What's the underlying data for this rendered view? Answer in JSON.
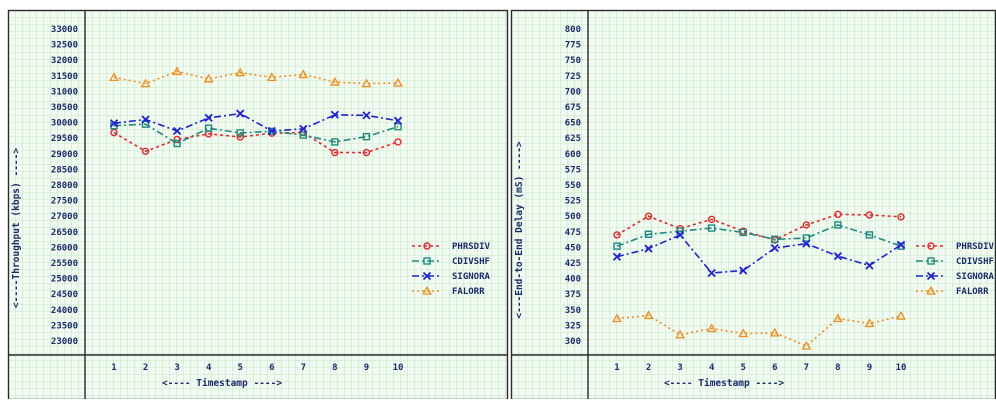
{
  "colors": {
    "background": "#f2fbf2",
    "grid": "#c4e8c4",
    "axis": "#2b2b2b",
    "label_text": "#1a2b6d"
  },
  "series_styles": [
    {
      "color": "#e8262a",
      "marker": "circle",
      "dash": "3,3"
    },
    {
      "color": "#1c8a7e",
      "marker": "square",
      "dash": "7,3,2,3"
    },
    {
      "color": "#1e22d9",
      "marker": "x",
      "dash": "7,3,2,3"
    },
    {
      "color": "#f28c1a",
      "marker": "triangle",
      "dash": "2,3"
    }
  ],
  "chart_data": [
    {
      "type": "line",
      "xlabel": "<---- Timestamp ---->",
      "ylabel": "<----Throughput (kbps) ---->",
      "x": [
        1,
        2,
        3,
        4,
        5,
        6,
        7,
        8,
        9,
        10
      ],
      "ylim": [
        23000,
        33000
      ],
      "yticks": [
        23000,
        23500,
        24000,
        24500,
        25000,
        25500,
        26000,
        26500,
        27000,
        27500,
        28000,
        28500,
        29000,
        29500,
        30000,
        30500,
        31000,
        31500,
        32000,
        32500,
        33000
      ],
      "grid": true,
      "legend": "right",
      "series": [
        {
          "name": "PHRSDIV",
          "values": [
            29680,
            29080,
            29460,
            29640,
            29540,
            29660,
            29680,
            29040,
            29040,
            29380
          ]
        },
        {
          "name": "CDIVSHF",
          "values": [
            29900,
            29950,
            29330,
            29820,
            29670,
            29720,
            29600,
            29380,
            29550,
            29870
          ]
        },
        {
          "name": "SIGNORA",
          "values": [
            29980,
            30100,
            29730,
            30150,
            30290,
            29730,
            29800,
            30250,
            30230,
            30060
          ]
        },
        {
          "name": "FALORR",
          "values": [
            31450,
            31250,
            31640,
            31400,
            31600,
            31450,
            31540,
            31300,
            31250,
            31270
          ]
        }
      ]
    },
    {
      "type": "line",
      "xlabel": "<---- Timestamp ---->",
      "ylabel": "<---End-to-End Delay (mS) ---->",
      "x": [
        1,
        2,
        3,
        4,
        5,
        6,
        7,
        8,
        9,
        10
      ],
      "ylim": [
        300,
        800
      ],
      "yticks": [
        300,
        325,
        350,
        375,
        400,
        425,
        450,
        475,
        500,
        525,
        550,
        575,
        600,
        625,
        650,
        675,
        700,
        725,
        750,
        775,
        800
      ],
      "grid": true,
      "legend": "right",
      "series": [
        {
          "name": "PHRSDIV",
          "values": [
            470,
            500,
            480,
            495,
            476,
            462,
            486,
            503,
            502,
            499
          ]
        },
        {
          "name": "CDIVSHF",
          "values": [
            452,
            471,
            476,
            481,
            474,
            463,
            465,
            486,
            470,
            452
          ]
        },
        {
          "name": "SIGNORA",
          "values": [
            435,
            448,
            470,
            409,
            413,
            449,
            456,
            436,
            421,
            454
          ]
        },
        {
          "name": "FALORR",
          "values": [
            336,
            341,
            310,
            320,
            312,
            313,
            292,
            336,
            328,
            340
          ]
        }
      ]
    }
  ]
}
